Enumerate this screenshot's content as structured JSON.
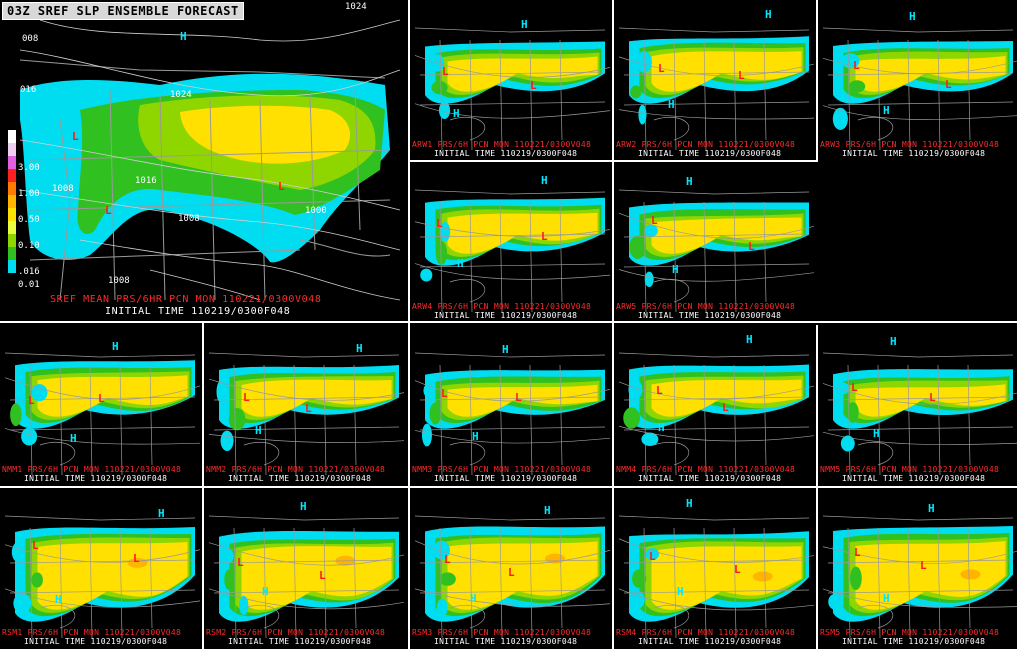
{
  "main": {
    "title": "03Z SREF SLP ENSEMBLE FORECAST",
    "line1": "SREF MEAN PRS/6HR PCN  MON 110221/0300V048",
    "line2": "INITIAL TIME 110219/0300F048",
    "isobars": [
      "1024",
      "008",
      "1024",
      "016",
      "1016",
      "1008",
      "1008",
      "1000",
      "1008"
    ],
    "highs": [
      "H"
    ],
    "lows": [
      "L",
      "L",
      "L"
    ],
    "legend": [
      {
        "label": "",
        "color": "#ffffff"
      },
      {
        "label": "",
        "color": "#f0d0f0"
      },
      {
        "label": "3.00",
        "color": "#e060e0"
      },
      {
        "label": "",
        "color": "#ff2020"
      },
      {
        "label": "1.00",
        "color": "#ff7a00"
      },
      {
        "label": "",
        "color": "#ffb400"
      },
      {
        "label": "0.50",
        "color": "#ffe000"
      },
      {
        "label": "",
        "color": "#e8ff40"
      },
      {
        "label": "0.10",
        "color": "#8fd600"
      },
      {
        "label": "",
        "color": "#30c020"
      },
      {
        "label": ".016",
        "color": "#00dcf0"
      },
      {
        "label": "0.01",
        "color": "#000000"
      }
    ]
  },
  "members": [
    {
      "code": "ARW1",
      "line1": "ARW1 PRS/6H PCN  MON 110221/0300V048",
      "line2": "INITIAL TIME 110219/0300F048"
    },
    {
      "code": "ARW2",
      "line1": "ARW2 PRS/6H PCN  MON 110221/0300V048",
      "line2": "INITIAL TIME 110219/0300F048"
    },
    {
      "code": "ARW3",
      "line1": "ARW3 PRS/6H PCN  MON 110221/0300V048",
      "line2": "INITIAL TIME 110219/0300F048"
    },
    {
      "code": "ARW4",
      "line1": "ARW4 PRS/6H PCN  MON 110221/0300V048",
      "line2": "INITIAL TIME 110219/0300F048"
    },
    {
      "code": "ARW5",
      "line1": "ARW5 PRS/6H PCN  MON 110221/0300V048",
      "line2": "INITIAL TIME 110219/0300F048"
    },
    {
      "code": "NMM1",
      "line1": "NMM1 PRS/6H PCN  MON 110221/0300V048",
      "line2": "INITIAL TIME 110219/0300F048"
    },
    {
      "code": "NMM2",
      "line1": "NMM2 PRS/6H PCN  MON 110221/0300V048",
      "line2": "INITIAL TIME 110219/0300F048"
    },
    {
      "code": "NMM3",
      "line1": "NMM3 PRS/6H PCN  MON 110221/0300V048",
      "line2": "INITIAL TIME 110219/0300F048"
    },
    {
      "code": "NMM4",
      "line1": "NMM4 PRS/6H PCN  MON 110221/0300V048",
      "line2": "INITIAL TIME 110219/0300F048"
    },
    {
      "code": "NMM5",
      "line1": "NMM5 PRS/6H PCN  MON 110221/0300V048",
      "line2": "INITIAL TIME 110219/0300F048"
    },
    {
      "code": "RSM1",
      "line1": "RSM1 PRS/6H PCN  MON 110221/0300V048",
      "line2": "INITIAL TIME 110219/0300F048"
    },
    {
      "code": "RSM2",
      "line1": "RSM2 PRS/6H PCN  MON 110221/0300V048",
      "line2": "INITIAL TIME 110219/0300F048"
    },
    {
      "code": "RSM3",
      "line1": "RSM3 PRS/6H PCN  MON 110221/0300V048",
      "line2": "INITIAL TIME 110219/0300F048"
    },
    {
      "code": "RSM4",
      "line1": "RSM4 PRS/6H PCN  MON 110221/0300V048",
      "line2": "INITIAL TIME 110219/0300F048"
    },
    {
      "code": "RSM5",
      "line1": "RSM5 PRS/6H PCN  MON 110221/0300V048",
      "line2": "INITIAL TIME 110219/0300F048"
    }
  ],
  "colors": {
    "cyan": "#00dcf0",
    "green": "#30c020",
    "lime": "#8fd600",
    "yellow": "#ffe000",
    "orange": "#ffb400",
    "high": "#00e8ff",
    "low": "#ff1a1a",
    "label_red": "#ff2a2a",
    "borders": "#9a9a9a"
  }
}
